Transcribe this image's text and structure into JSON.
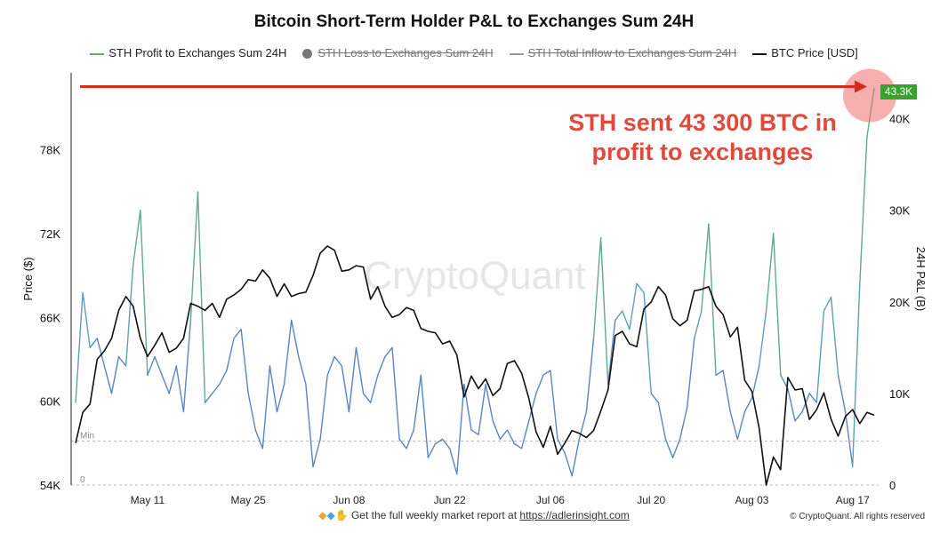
{
  "chart_data": {
    "type": "line",
    "title": "Bitcoin Short-Term Holder P&L to Exchanges Sum 24H",
    "legend": [
      {
        "name": "STH Profit to Exchanges Sum 24H",
        "color": "#5fae6e",
        "shape": "line",
        "active": true
      },
      {
        "name": "STH Loss to Exchanges Sum 24H",
        "color": "#777777",
        "shape": "dot",
        "active": false
      },
      {
        "name": "STH Total Inflow to  Exchanges Sum 24H",
        "color": "#999999",
        "shape": "line",
        "active": false
      },
      {
        "name": "BTC Price [USD]",
        "color": "#111111",
        "shape": "line",
        "active": true
      }
    ],
    "legend_position": "top-center",
    "y_left": {
      "label": "Price ($)",
      "ticks": [
        "54K",
        "60K",
        "66K",
        "72K",
        "78K"
      ],
      "tick_values": [
        54000,
        60000,
        66000,
        72000,
        78000
      ],
      "range": [
        54000,
        83500
      ]
    },
    "y_right": {
      "label": "24H P&L  (B)",
      "ticks": [
        "0",
        "10K",
        "20K",
        "30K",
        "40K"
      ],
      "tick_values": [
        0,
        10000,
        20000,
        30000,
        40000
      ],
      "range": [
        0,
        45000
      ]
    },
    "x_ticks": [
      "May 11",
      "May 25",
      "Jun 08",
      "Jun 22",
      "Jul 06",
      "Jul 20",
      "Aug 03",
      "Aug 17"
    ],
    "x_range": [
      "2024-05-01",
      "2024-08-20"
    ],
    "reference_lines": [
      {
        "label": "Min",
        "value": 4800
      },
      {
        "label": "0",
        "value": 0
      }
    ],
    "last_value_badge": "43.3K",
    "annotation": "STH sent 43 300 BTC in profit to exchanges",
    "watermark": "CryptoQuant",
    "price_series": {
      "name": "BTC Price [USD]",
      "points": [
        [
          "2024-05-01",
          57000
        ],
        [
          "2024-05-02",
          59200
        ],
        [
          "2024-05-03",
          59800
        ],
        [
          "2024-05-04",
          63000
        ],
        [
          "2024-05-05",
          63600
        ],
        [
          "2024-05-06",
          64500
        ],
        [
          "2024-05-07",
          66500
        ],
        [
          "2024-05-08",
          67500
        ],
        [
          "2024-05-09",
          66800
        ],
        [
          "2024-05-10",
          64500
        ],
        [
          "2024-05-11",
          63200
        ],
        [
          "2024-05-12",
          64000
        ],
        [
          "2024-05-13",
          64900
        ],
        [
          "2024-05-14",
          63500
        ],
        [
          "2024-05-15",
          63800
        ],
        [
          "2024-05-16",
          64500
        ],
        [
          "2024-05-17",
          67000
        ],
        [
          "2024-05-18",
          66800
        ],
        [
          "2024-05-19",
          66500
        ],
        [
          "2024-05-20",
          67000
        ],
        [
          "2024-05-21",
          66000
        ],
        [
          "2024-05-22",
          67300
        ],
        [
          "2024-05-23",
          67600
        ],
        [
          "2024-05-24",
          68000
        ],
        [
          "2024-05-25",
          68700
        ],
        [
          "2024-05-26",
          68600
        ],
        [
          "2024-05-27",
          69400
        ],
        [
          "2024-05-28",
          68800
        ],
        [
          "2024-05-29",
          67500
        ],
        [
          "2024-05-30",
          68400
        ],
        [
          "2024-05-31",
          67500
        ],
        [
          "2024-06-01",
          67700
        ],
        [
          "2024-06-02",
          67800
        ],
        [
          "2024-06-03",
          69000
        ],
        [
          "2024-06-04",
          70600
        ],
        [
          "2024-06-05",
          71100
        ],
        [
          "2024-06-06",
          70800
        ],
        [
          "2024-06-07",
          69300
        ],
        [
          "2024-06-08",
          69400
        ],
        [
          "2024-06-09",
          69700
        ],
        [
          "2024-06-10",
          69600
        ],
        [
          "2024-06-11",
          67300
        ],
        [
          "2024-06-12",
          68200
        ],
        [
          "2024-06-13",
          66800
        ],
        [
          "2024-06-14",
          66000
        ],
        [
          "2024-06-15",
          66200
        ],
        [
          "2024-06-16",
          66700
        ],
        [
          "2024-06-17",
          66500
        ],
        [
          "2024-06-18",
          65200
        ],
        [
          "2024-06-19",
          65000
        ],
        [
          "2024-06-20",
          64900
        ],
        [
          "2024-06-21",
          64100
        ],
        [
          "2024-06-22",
          64300
        ],
        [
          "2024-06-23",
          63300
        ],
        [
          "2024-06-24",
          60300
        ],
        [
          "2024-06-25",
          61800
        ],
        [
          "2024-06-26",
          60900
        ],
        [
          "2024-06-27",
          61600
        ],
        [
          "2024-06-28",
          60400
        ],
        [
          "2024-06-29",
          60900
        ],
        [
          "2024-06-30",
          62700
        ],
        [
          "2024-07-01",
          62900
        ],
        [
          "2024-07-02",
          62000
        ],
        [
          "2024-07-03",
          60200
        ],
        [
          "2024-07-04",
          57800
        ],
        [
          "2024-07-05",
          56700
        ],
        [
          "2024-07-06",
          58200
        ],
        [
          "2024-07-07",
          56200
        ],
        [
          "2024-07-08",
          57000
        ],
        [
          "2024-07-09",
          57900
        ],
        [
          "2024-07-10",
          57700
        ],
        [
          "2024-07-11",
          57400
        ],
        [
          "2024-07-12",
          57900
        ],
        [
          "2024-07-13",
          59300
        ],
        [
          "2024-07-14",
          60800
        ],
        [
          "2024-07-15",
          64700
        ],
        [
          "2024-07-16",
          65000
        ],
        [
          "2024-07-17",
          64100
        ],
        [
          "2024-07-18",
          63900
        ],
        [
          "2024-07-19",
          66600
        ],
        [
          "2024-07-20",
          67100
        ],
        [
          "2024-07-21",
          68200
        ],
        [
          "2024-07-22",
          67600
        ],
        [
          "2024-07-23",
          65900
        ],
        [
          "2024-07-24",
          65400
        ],
        [
          "2024-07-25",
          65800
        ],
        [
          "2024-07-26",
          67900
        ],
        [
          "2024-07-27",
          68000
        ],
        [
          "2024-07-28",
          68200
        ],
        [
          "2024-07-29",
          66800
        ],
        [
          "2024-07-30",
          66200
        ],
        [
          "2024-07-31",
          64600
        ],
        [
          "2024-08-01",
          65300
        ],
        [
          "2024-08-02",
          61500
        ],
        [
          "2024-08-03",
          60700
        ],
        [
          "2024-08-04",
          58100
        ],
        [
          "2024-08-05",
          54000
        ],
        [
          "2024-08-06",
          56000
        ],
        [
          "2024-08-07",
          55100
        ],
        [
          "2024-08-08",
          61700
        ],
        [
          "2024-08-09",
          60800
        ],
        [
          "2024-08-10",
          60900
        ],
        [
          "2024-08-11",
          58700
        ],
        [
          "2024-08-12",
          59400
        ],
        [
          "2024-08-13",
          60600
        ],
        [
          "2024-08-14",
          58700
        ],
        [
          "2024-08-15",
          57500
        ],
        [
          "2024-08-16",
          58900
        ],
        [
          "2024-08-17",
          59400
        ],
        [
          "2024-08-18",
          58400
        ],
        [
          "2024-08-19",
          59200
        ],
        [
          "2024-08-20",
          59000
        ]
      ]
    },
    "profit_series": {
      "name": "STH Profit to Exchanges Sum 24H",
      "points": [
        [
          "2024-05-01",
          9000
        ],
        [
          "2024-05-02",
          21000
        ],
        [
          "2024-05-03",
          15000
        ],
        [
          "2024-05-04",
          16000
        ],
        [
          "2024-05-05",
          13000
        ],
        [
          "2024-05-06",
          10000
        ],
        [
          "2024-05-07",
          14000
        ],
        [
          "2024-05-08",
          13000
        ],
        [
          "2024-05-09",
          24000
        ],
        [
          "2024-05-10",
          30000
        ],
        [
          "2024-05-11",
          12000
        ],
        [
          "2024-05-12",
          14000
        ],
        [
          "2024-05-13",
          12000
        ],
        [
          "2024-05-14",
          10000
        ],
        [
          "2024-05-15",
          13000
        ],
        [
          "2024-05-16",
          8000
        ],
        [
          "2024-05-17",
          18000
        ],
        [
          "2024-05-18",
          32000
        ],
        [
          "2024-05-19",
          9000
        ],
        [
          "2024-05-20",
          10000
        ],
        [
          "2024-05-21",
          11000
        ],
        [
          "2024-05-22",
          12500
        ],
        [
          "2024-05-23",
          16000
        ],
        [
          "2024-05-24",
          17000
        ],
        [
          "2024-05-25",
          10000
        ],
        [
          "2024-05-26",
          6000
        ],
        [
          "2024-05-27",
          4000
        ],
        [
          "2024-05-28",
          13000
        ],
        [
          "2024-05-29",
          8000
        ],
        [
          "2024-05-30",
          11000
        ],
        [
          "2024-05-31",
          18000
        ],
        [
          "2024-06-01",
          14000
        ],
        [
          "2024-06-02",
          11000
        ],
        [
          "2024-06-03",
          2000
        ],
        [
          "2024-06-04",
          5000
        ],
        [
          "2024-06-05",
          12000
        ],
        [
          "2024-06-06",
          14000
        ],
        [
          "2024-06-07",
          13000
        ],
        [
          "2024-06-08",
          8000
        ],
        [
          "2024-06-09",
          15000
        ],
        [
          "2024-06-10",
          10000
        ],
        [
          "2024-06-11",
          9000
        ],
        [
          "2024-06-12",
          12000
        ],
        [
          "2024-06-13",
          14000
        ],
        [
          "2024-06-14",
          15000
        ],
        [
          "2024-06-15",
          5000
        ],
        [
          "2024-06-16",
          4000
        ],
        [
          "2024-06-17",
          6000
        ],
        [
          "2024-06-18",
          12000
        ],
        [
          "2024-06-19",
          3000
        ],
        [
          "2024-06-20",
          4500
        ],
        [
          "2024-06-21",
          5000
        ],
        [
          "2024-06-22",
          4000
        ],
        [
          "2024-06-23",
          1200
        ],
        [
          "2024-06-24",
          11000
        ],
        [
          "2024-06-25",
          6000
        ],
        [
          "2024-06-26",
          5500
        ],
        [
          "2024-06-27",
          11000
        ],
        [
          "2024-06-28",
          7000
        ],
        [
          "2024-06-29",
          5000
        ],
        [
          "2024-06-30",
          6000
        ],
        [
          "2024-07-01",
          4500
        ],
        [
          "2024-07-02",
          4000
        ],
        [
          "2024-07-03",
          7000
        ],
        [
          "2024-07-04",
          10000
        ],
        [
          "2024-07-05",
          12000
        ],
        [
          "2024-07-06",
          12500
        ],
        [
          "2024-07-07",
          5000
        ],
        [
          "2024-07-08",
          3500
        ],
        [
          "2024-07-09",
          1000
        ],
        [
          "2024-07-10",
          5000
        ],
        [
          "2024-07-11",
          8000
        ],
        [
          "2024-07-12",
          16000
        ],
        [
          "2024-07-13",
          27000
        ],
        [
          "2024-07-14",
          11000
        ],
        [
          "2024-07-15",
          18000
        ],
        [
          "2024-07-16",
          19000
        ],
        [
          "2024-07-17",
          17000
        ],
        [
          "2024-07-18",
          22000
        ],
        [
          "2024-07-19",
          21000
        ],
        [
          "2024-07-20",
          10000
        ],
        [
          "2024-07-21",
          9000
        ],
        [
          "2024-07-22",
          5000
        ],
        [
          "2024-07-23",
          3000
        ],
        [
          "2024-07-24",
          5000
        ],
        [
          "2024-07-25",
          8500
        ],
        [
          "2024-07-26",
          16000
        ],
        [
          "2024-07-27",
          19000
        ],
        [
          "2024-07-28",
          28500
        ],
        [
          "2024-07-29",
          12000
        ],
        [
          "2024-07-30",
          12500
        ],
        [
          "2024-07-31",
          8000
        ],
        [
          "2024-08-01",
          5000
        ],
        [
          "2024-08-02",
          8000
        ],
        [
          "2024-08-03",
          9500
        ],
        [
          "2024-08-04",
          13000
        ],
        [
          "2024-08-05",
          19000
        ],
        [
          "2024-08-06",
          27500
        ],
        [
          "2024-08-07",
          12000
        ],
        [
          "2024-08-08",
          10500
        ],
        [
          "2024-08-09",
          7000
        ],
        [
          "2024-08-10",
          8000
        ],
        [
          "2024-08-11",
          10000
        ],
        [
          "2024-08-12",
          9000
        ],
        [
          "2024-08-13",
          19000
        ],
        [
          "2024-08-14",
          20500
        ],
        [
          "2024-08-15",
          12000
        ],
        [
          "2024-08-16",
          8000
        ],
        [
          "2024-08-17",
          2000
        ],
        [
          "2024-08-18",
          22000
        ],
        [
          "2024-08-19",
          38000
        ],
        [
          "2024-08-20",
          43300
        ]
      ]
    }
  },
  "footer": {
    "note": "Get the full weekly market report at ",
    "link": "https://adlerinsight.com",
    "copyright": "© CryptoQuant. All rights reserved"
  }
}
